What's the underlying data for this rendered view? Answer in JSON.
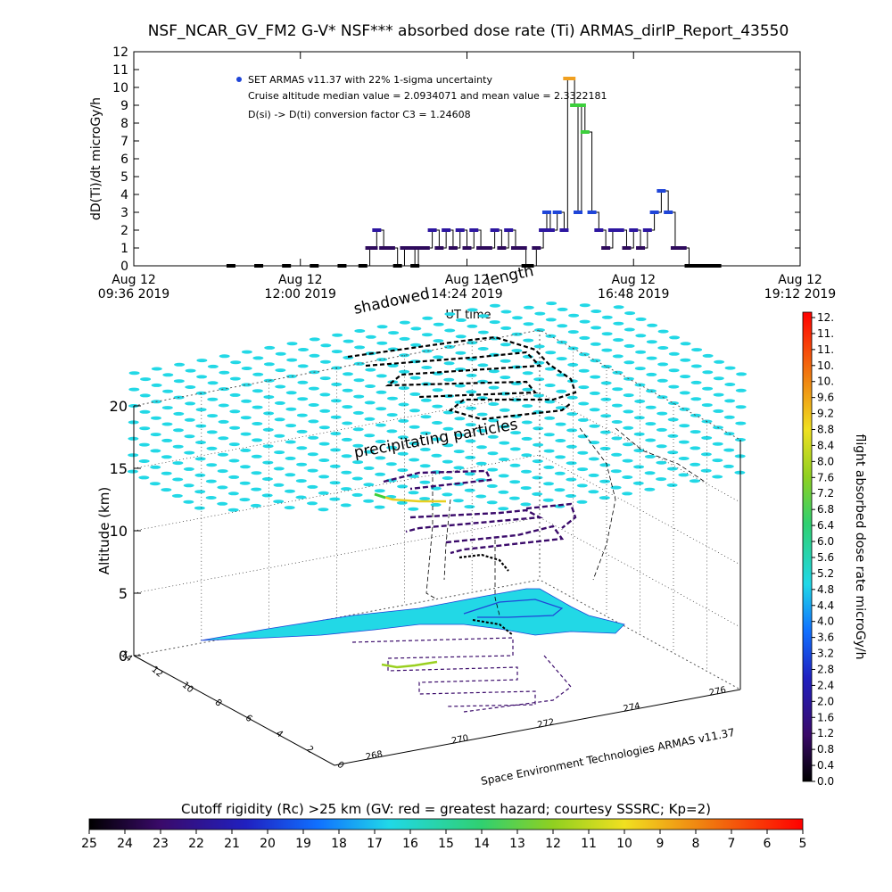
{
  "chart_data": [
    {
      "type": "line",
      "title": "NSF_NCAR_GV_FM2 G-V* NSF*** absorbed dose rate (Ti) ARMAS_dirIP_Report_43550",
      "xlabel": "UT time",
      "ylabel": "dD(Ti)/dt microGy/h",
      "ylim": [
        0,
        12
      ],
      "y_ticks": [
        "0",
        "1",
        "2",
        "3",
        "4",
        "5",
        "6",
        "7",
        "8",
        "9",
        "10",
        "11",
        "12"
      ],
      "x_ticks": [
        {
          "line1": "Aug 12",
          "line2": "09:36 2019"
        },
        {
          "line1": "Aug 12",
          "line2": "12:00 2019"
        },
        {
          "line1": "Aug 12",
          "line2": "14:24 2019"
        },
        {
          "line1": "Aug 12",
          "line2": "16:48 2019"
        },
        {
          "line1": "Aug 12",
          "line2": "19:12 2019"
        }
      ],
      "xlim_hours": [
        9.6,
        19.2
      ],
      "annotations": [
        "SET ARMAS v11.37 with 22% 1-sigma uncertainty",
        "Cruise altitude median value = 2.0934071 and mean value = 2.3322181",
        "D(si) -> D(ti) conversion factor C3 = 1.24608"
      ],
      "series": [
        {
          "x_hours": [
            11.0,
            11.4,
            11.8,
            12.2,
            12.6,
            12.9,
            13.0,
            13.05,
            13.1,
            13.2,
            13.3,
            13.4,
            13.5,
            13.6,
            13.65,
            13.7,
            13.8,
            13.9,
            14.0,
            14.1,
            14.2,
            14.3,
            14.4,
            14.5,
            14.6,
            14.7,
            14.8,
            14.9,
            15.0,
            15.1,
            15.2,
            15.25,
            15.3,
            15.4,
            15.5,
            15.55,
            15.6,
            15.7,
            15.8,
            15.85,
            15.9,
            15.95,
            16.0,
            16.05,
            16.1,
            16.2,
            16.3,
            16.4,
            16.5,
            16.6,
            16.7,
            16.8,
            16.9,
            17.0,
            17.1,
            17.2,
            17.3,
            17.4,
            17.5,
            17.6,
            17.7,
            17.8,
            17.9,
            18.0
          ],
          "y": [
            0,
            0,
            0,
            0,
            0,
            0,
            1,
            1,
            2,
            1,
            1,
            0,
            1,
            1,
            0,
            1,
            1,
            2,
            1,
            2,
            1,
            2,
            1,
            2,
            1,
            1,
            2,
            1,
            2,
            1,
            1,
            0,
            0,
            1,
            2,
            3,
            2,
            3,
            2,
            10.5,
            10.5,
            9,
            3,
            9,
            7.5,
            3,
            2,
            1,
            2,
            2,
            1,
            2,
            1,
            2,
            3,
            4.2,
            3,
            1,
            1,
            0,
            0,
            0,
            0,
            0
          ]
        }
      ]
    },
    {
      "type": "scatter",
      "subtype": "3d-trajectory",
      "zlabel": "Altitude (km)",
      "z_ticks": [
        "0",
        "5",
        "10",
        "15",
        "20"
      ],
      "zlim": [
        0,
        20
      ],
      "lon_ticks": [
        "268",
        "270",
        "272",
        "274",
        "276"
      ],
      "lat_ticks": [
        "0",
        "2",
        "4",
        "6",
        "8",
        "10",
        "12",
        "14"
      ],
      "annotations": {
        "shadowed": "shadowed",
        "length": "length",
        "precip": "precipitating particles",
        "credit": "Space Environment Technologies ARMAS v11.37"
      }
    }
  ],
  "colorbar_right": {
    "label": "flight absorbed dose rate microGy/h",
    "ticks": [
      "12.",
      "11.",
      "11.",
      "10.",
      "10.",
      "9.6",
      "9.2",
      "8.8",
      "8.4",
      "8.0",
      "7.6",
      "7.2",
      "6.8",
      "6.4",
      "6.0",
      "5.6",
      "5.2",
      "4.8",
      "4.4",
      "4.0",
      "3.6",
      "3.2",
      "2.8",
      "2.4",
      "2.0",
      "1.6",
      "1.2",
      "0.8",
      "0.4",
      "0.0"
    ]
  },
  "colorbar_bottom": {
    "title": "Cutoff rigidity (Rc) >25 km (GV: red = greatest hazard; courtesy SSSRC; Kp=2)",
    "ticks": [
      "25",
      "24",
      "23",
      "22",
      "21",
      "20",
      "19",
      "18",
      "17",
      "16",
      "15",
      "14",
      "13",
      "12",
      "11",
      "10",
      "9",
      "8",
      "7",
      "6",
      "5"
    ]
  },
  "colors": {
    "low": "#2e0a5c",
    "mid": "#1f45d8",
    "cyan": "#22d8e6",
    "green": "#3ccf3c",
    "yellow": "#e8d020",
    "orange": "#f0a020",
    "red": "#ff1a1a"
  }
}
